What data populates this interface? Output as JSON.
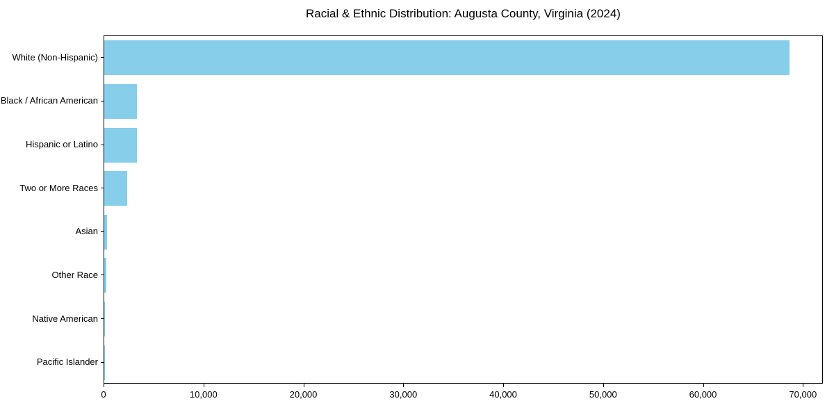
{
  "title": "Racial & Ethnic Distribution: Augusta County, Virginia (2024)",
  "chart_data": {
    "type": "bar",
    "orientation": "horizontal",
    "title": "Racial & Ethnic Distribution: Augusta County, Virginia (2024)",
    "categories": [
      "White (Non-Hispanic)",
      "Black / African American",
      "Hispanic or Latino",
      "Two or More Races",
      "Asian",
      "Other Race",
      "Native American",
      "Pacific Islander"
    ],
    "values": [
      68600,
      3300,
      3250,
      2300,
      300,
      200,
      100,
      25
    ],
    "xlabel": "",
    "ylabel": "",
    "xlim": [
      0,
      72000
    ],
    "x_ticks": [
      0,
      10000,
      20000,
      30000,
      40000,
      50000,
      60000,
      70000
    ],
    "x_tick_labels": [
      "0",
      "10,000",
      "20,000",
      "30,000",
      "40,000",
      "50,000",
      "60,000",
      "70,000"
    ],
    "bar_color": "#87CEEB",
    "grid": false,
    "legend_position": "none"
  }
}
